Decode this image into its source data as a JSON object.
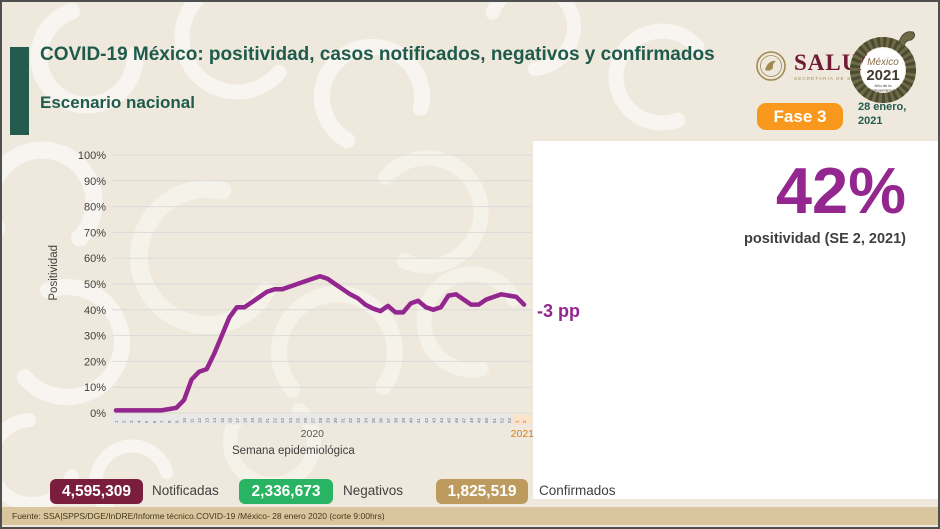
{
  "header": {
    "title": "COVID-19 México: positividad, casos notificados, negativos y confirmados",
    "subtitle": "Escenario nacional",
    "phase_badge": "Fase 3",
    "date": "28 enero, 2021",
    "salud_logo": {
      "name": "SALUD",
      "sub": "SECRETARÍA DE SALUD"
    },
    "logo_2021": {
      "word": "México",
      "year": "2021",
      "sub": "Año de la Independencia"
    }
  },
  "kpi": {
    "value": "42%",
    "label": "positividad (SE 2, 2021)"
  },
  "chart_data": {
    "type": "line",
    "title": "",
    "xlabel": "Semana epidemiológica",
    "ylabel": "Positividad",
    "ylim": [
      0,
      100
    ],
    "y_tick_step": 10,
    "grid": true,
    "legend_position": "none",
    "categories": [
      "1",
      "2",
      "3",
      "4",
      "5",
      "6",
      "7",
      "8",
      "9",
      "10",
      "11",
      "12",
      "13",
      "14",
      "15",
      "16",
      "17",
      "18",
      "19",
      "20",
      "21",
      "22",
      "23",
      "24",
      "25",
      "26",
      "27",
      "28",
      "29",
      "30",
      "31",
      "32",
      "33",
      "34",
      "35",
      "36",
      "37",
      "38",
      "39",
      "40",
      "41",
      "42",
      "43",
      "44",
      "45",
      "46",
      "47",
      "48",
      "49",
      "50",
      "51",
      "52",
      "53",
      "1",
      "2"
    ],
    "series": [
      {
        "name": "Positividad",
        "color": "#93268F",
        "values": [
          1,
          1,
          1,
          1,
          1,
          1,
          1,
          1.5,
          2,
          5,
          13,
          16,
          17,
          23,
          30,
          37,
          41,
          41,
          43,
          45,
          47,
          48,
          48,
          49,
          50,
          51,
          52,
          53,
          52,
          50,
          48,
          46,
          44.5,
          42,
          40.5,
          39.5,
          41.5,
          39,
          39,
          42.5,
          43.5,
          41,
          40,
          41,
          45.5,
          46,
          44,
          42,
          42,
          44,
          45,
          46,
          45.5,
          45,
          42
        ]
      }
    ],
    "x_groups": [
      {
        "label": "2020",
        "from": 0,
        "to": 52,
        "color": "#595959",
        "band": "#E8E8E8"
      },
      {
        "label": "2021",
        "from": 53,
        "to": 54,
        "color": "#D97A1A",
        "band": "#FAE3C8"
      }
    ],
    "annotation": "-3 pp",
    "axis_colors": {
      "grid": "#DADADA",
      "tick_text": "#3F3F3F",
      "week_text": "#6A6A6A",
      "week_text_2021": "#C05A11"
    }
  },
  "stats": [
    {
      "value": "4,595,309",
      "label": "Notificadas",
      "color": "#7B1E3E"
    },
    {
      "value": "2,336,673",
      "label": "Negativos",
      "color": "#28B463"
    },
    {
      "value": "1,825,519",
      "label": "Confirmados",
      "color": "#BD9B5E"
    }
  ],
  "footer": {
    "source": "Fuente: SSA|SPPS/DGE/InDRE/Informe técnico.COVID-19 /México- 28 enero 2020 (corte 9:00hrs)"
  }
}
